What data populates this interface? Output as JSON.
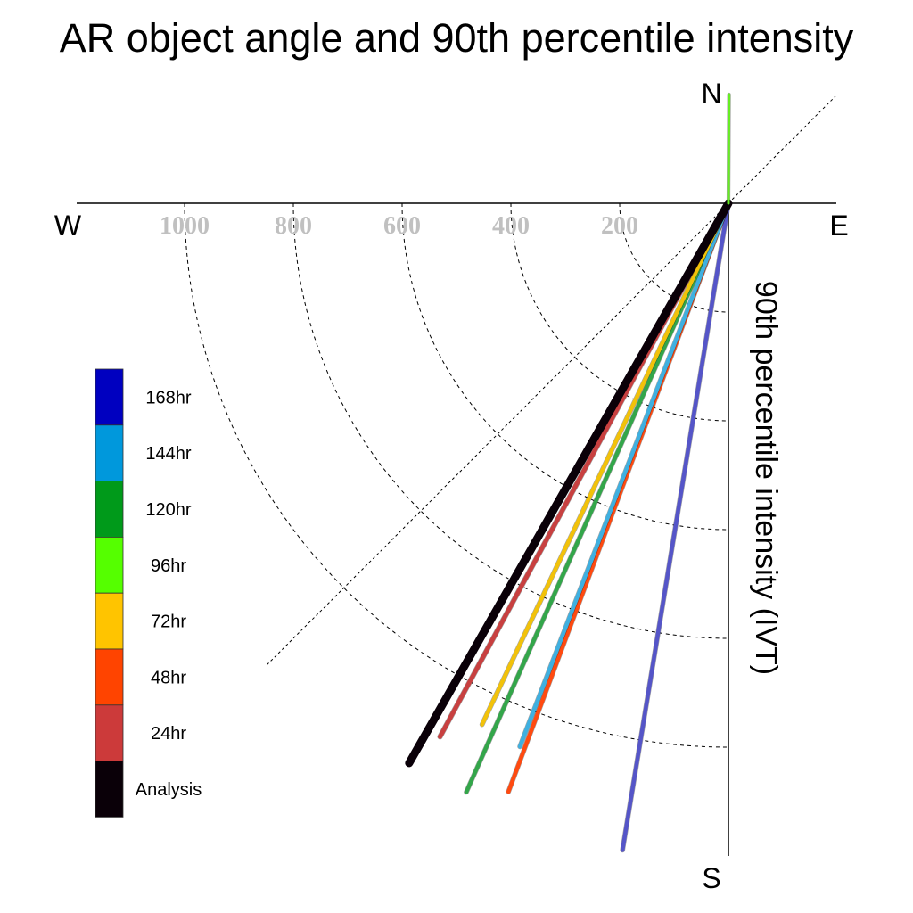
{
  "chart_data": {
    "type": "polar-quadrant-line",
    "title": "AR object angle and 90th percentile intensity",
    "ylabel": "90th percentile intensity (IVT)",
    "compass": {
      "north": "N",
      "south": "S",
      "east": "E",
      "west": "W"
    },
    "radial_ticks": [
      "200",
      "400",
      "600",
      "800",
      "1000"
    ],
    "radial_tick_values": [
      200,
      400,
      600,
      800,
      1000
    ],
    "rlim": [
      0,
      1200
    ],
    "grid": "dashed",
    "legend_position": "left",
    "legend": [
      {
        "label": "168hr",
        "color": "#0000c0"
      },
      {
        "label": "144hr",
        "color": "#0098dc"
      },
      {
        "label": "120hr",
        "color": "#009a1a"
      },
      {
        "label": "96hr",
        "color": "#55ff00"
      },
      {
        "label": "72hr",
        "color": "#ffc400"
      },
      {
        "label": "48hr",
        "color": "#ff4400"
      },
      {
        "label": "24hr",
        "color": "#cc3a3a"
      },
      {
        "label": "Analysis",
        "color": "#0a0008"
      }
    ],
    "series": [
      {
        "name": "168hr",
        "angle_deg_from_north_clockwise": 189.3,
        "intensity": 1205,
        "color": "#5555c8"
      },
      {
        "name": "120hr",
        "angle_deg_from_north_clockwise": 204.0,
        "intensity": 1185,
        "color": "#33a64a"
      },
      {
        "name": "48hr",
        "angle_deg_from_north_clockwise": 200.5,
        "intensity": 1155,
        "color": "#ff4a10"
      },
      {
        "name": "144hr",
        "angle_deg_from_north_clockwise": 201.0,
        "intensity": 1070,
        "color": "#3fb0e0"
      },
      {
        "name": "72hr",
        "angle_deg_from_north_clockwise": 205.3,
        "intensity": 1060,
        "color": "#f2c20a"
      },
      {
        "name": "24hr",
        "angle_deg_from_north_clockwise": 208.4,
        "intensity": 1115,
        "color": "#c84040"
      },
      {
        "name": "Analysis",
        "angle_deg_from_north_clockwise": 209.7,
        "intensity": 1185,
        "color": "#0a0008"
      },
      {
        "name": "96hr",
        "angle_deg_from_north_clockwise": 0.3,
        "intensity": 200,
        "color": "#66ee22"
      }
    ]
  }
}
